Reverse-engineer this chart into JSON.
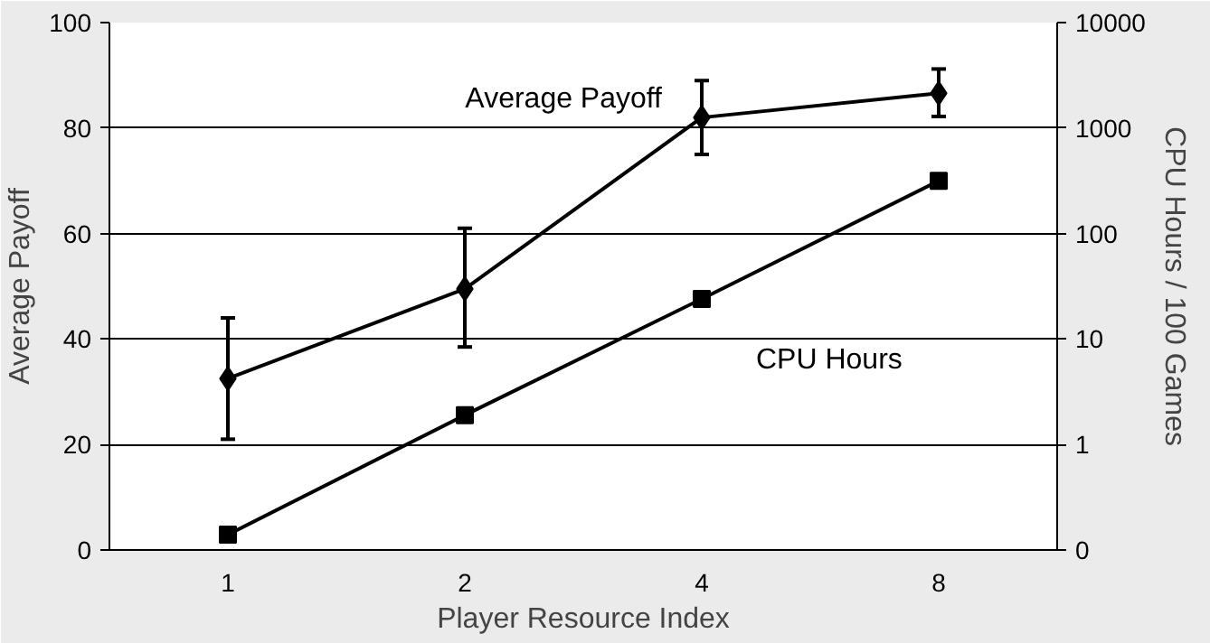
{
  "chart_data": {
    "type": "line",
    "xlabel": "Player Resource Index",
    "ylabel": "Average Payoff",
    "y2label": "CPU Hours / 100 Games",
    "categories": [
      "1",
      "2",
      "4",
      "8"
    ],
    "series": [
      {
        "name": "Average Payoff",
        "color": "#000000",
        "marker": "diamond",
        "values": [
          32.5,
          49.5,
          82,
          86.6
        ],
        "errors": [
          [
            21,
            44
          ],
          [
            38.5,
            61
          ],
          [
            75,
            89
          ],
          [
            82.2,
            91.2
          ]
        ]
      },
      {
        "name": "CPU Hours",
        "color": "#000000",
        "marker": "square",
        "axis": "y2",
        "values": [
          0.14,
          1.9,
          24,
          316
        ]
      }
    ],
    "ylim": [
      0,
      100
    ],
    "yticks": [
      0,
      20,
      40,
      60,
      80,
      100
    ],
    "y2lim": [
      0.1,
      10000
    ],
    "y2ticks": [
      {
        "value": 0.1,
        "label": "0"
      },
      1,
      10,
      100,
      1000,
      10000
    ],
    "log": "y2",
    "grid": "y"
  }
}
